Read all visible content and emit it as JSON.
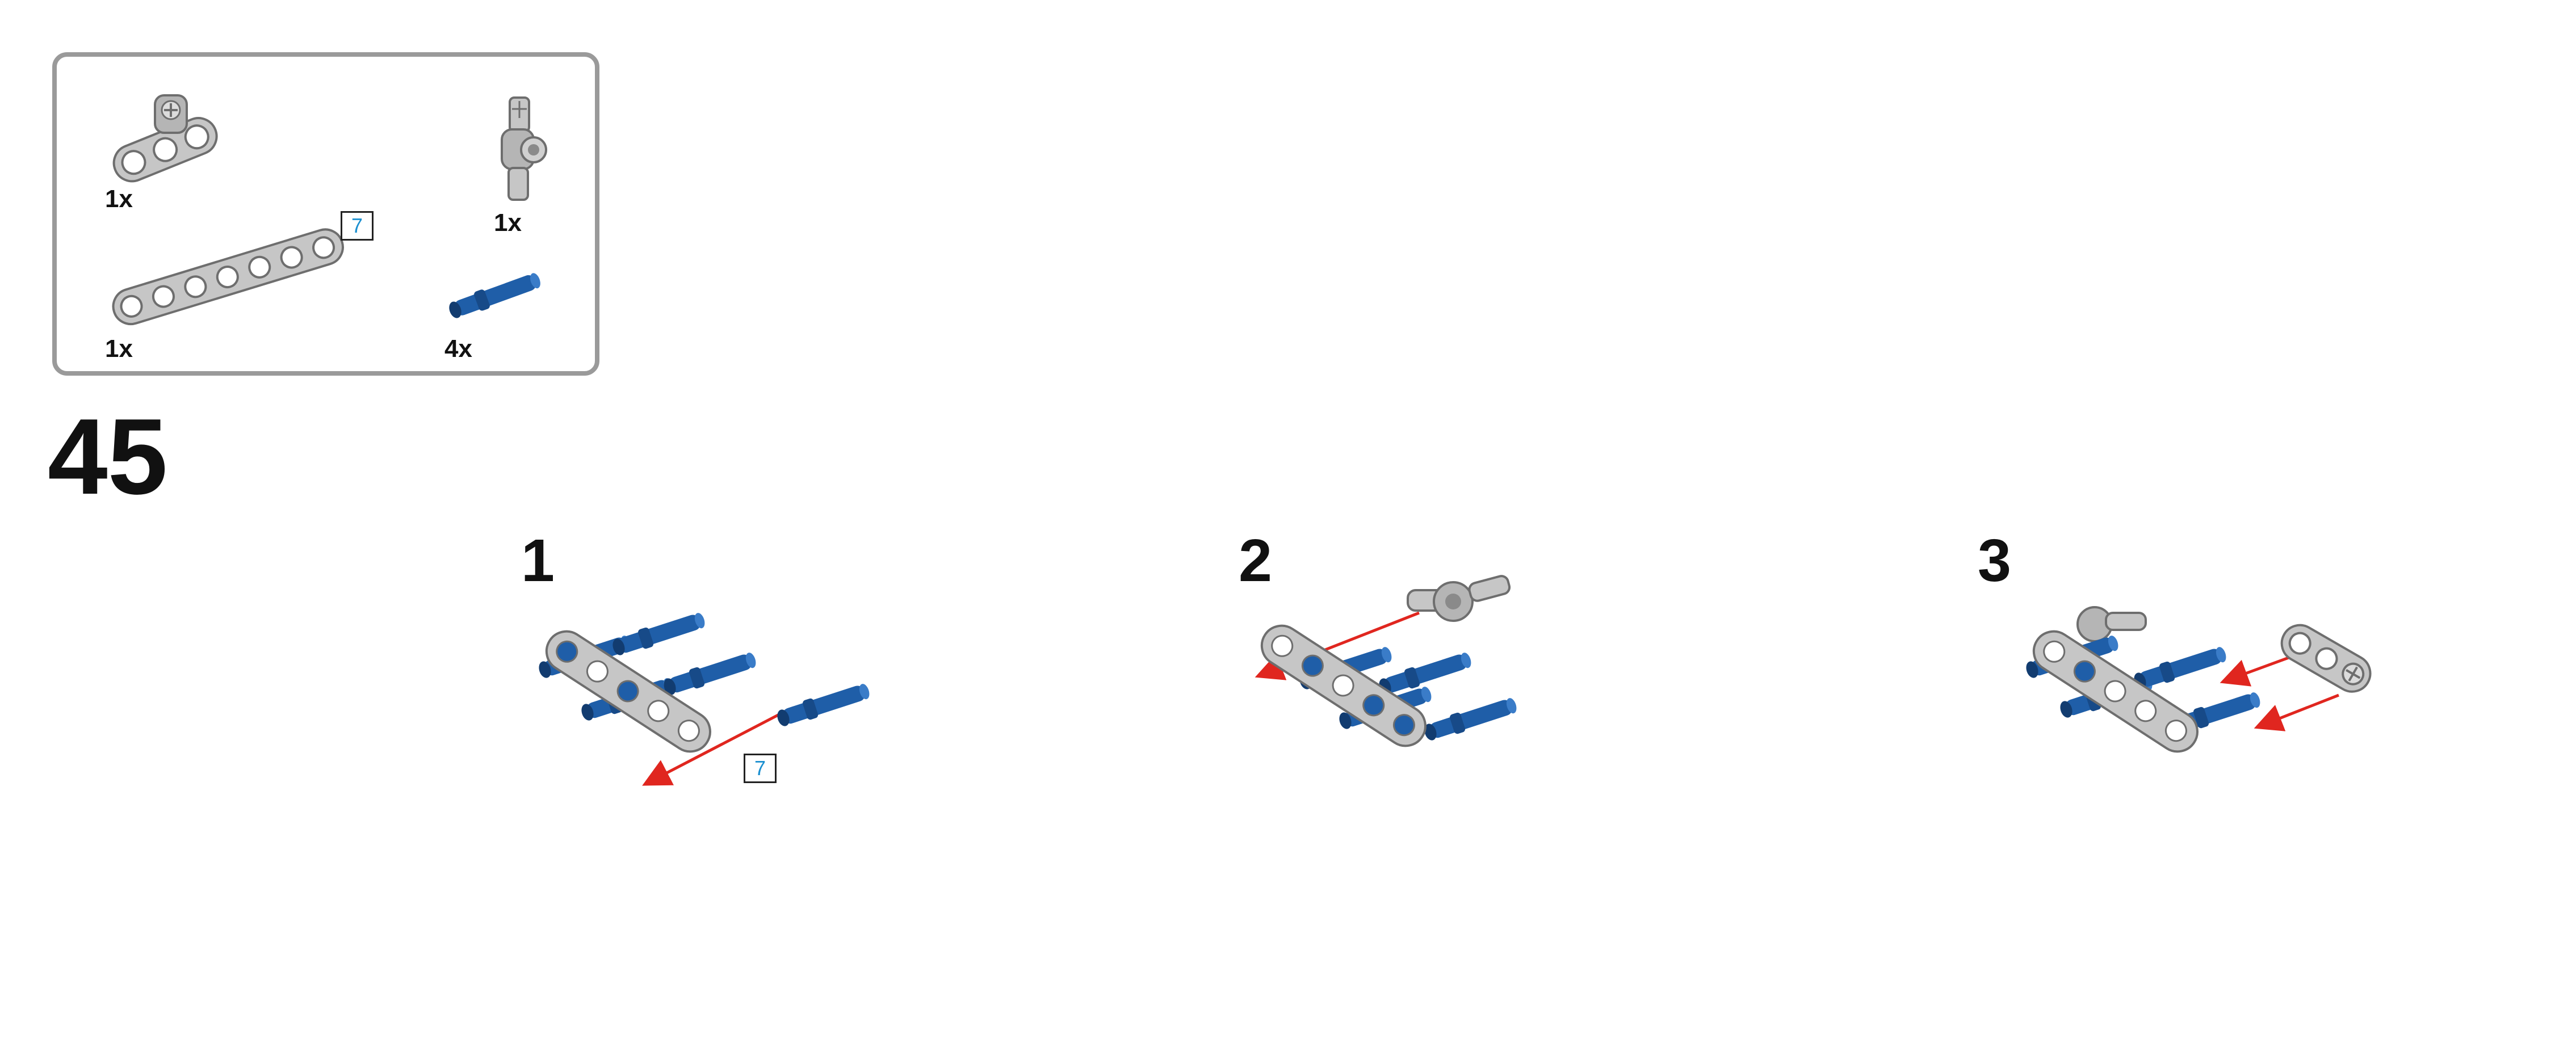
{
  "parts_list": {
    "items": [
      {
        "name": "beam-3-with-axle-hole",
        "qty": "1x"
      },
      {
        "name": "axle-pin-connector",
        "qty": "1x"
      },
      {
        "name": "beam-7",
        "qty": "1x",
        "length_tag": "7"
      },
      {
        "name": "blue-long-pin",
        "qty": "4x"
      }
    ]
  },
  "main_step": {
    "number": "45"
  },
  "sub_steps": [
    {
      "number": "1",
      "length_tag": "7"
    },
    {
      "number": "2"
    },
    {
      "number": "3"
    }
  ],
  "colors": {
    "border": "#9a9a9a",
    "gray_part": "#c6c6c6",
    "gray_dark": "#6e6e6e",
    "blue_part": "#1f5ea8",
    "arrow_red": "#e0261f",
    "tag_text": "#1a8fd0"
  }
}
